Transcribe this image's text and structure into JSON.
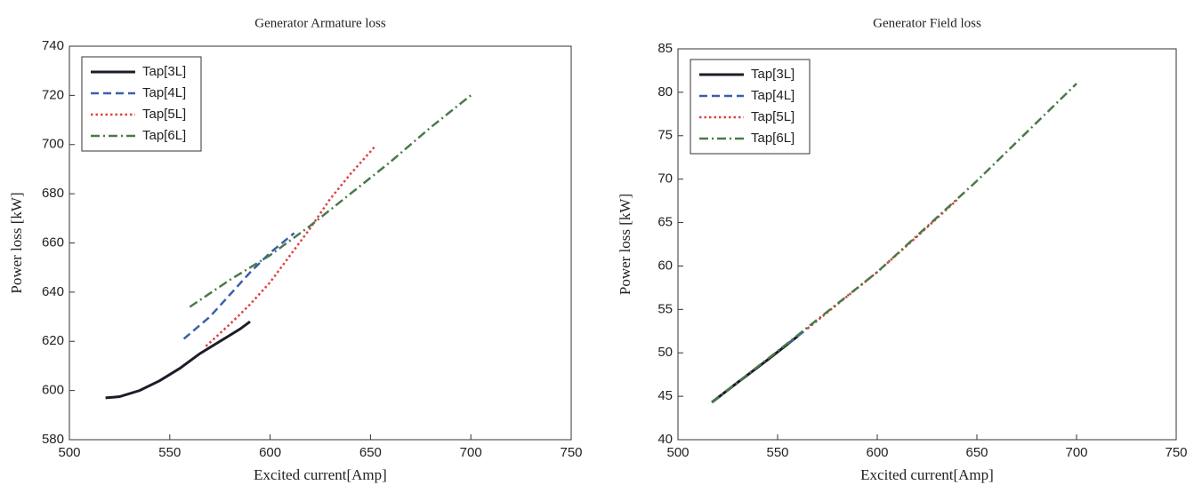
{
  "chart_data": [
    {
      "type": "line",
      "title": "Generator Armature loss",
      "x_label": "Excited current[Amp]",
      "y_label": "Power loss [kW]",
      "xlim": [
        500,
        750
      ],
      "xticks": [
        500,
        550,
        600,
        650,
        700,
        750
      ],
      "ylim": [
        580,
        740
      ],
      "yticks": [
        580,
        600,
        620,
        640,
        660,
        680,
        700,
        720,
        740
      ],
      "legend": "upper left",
      "series": [
        {
          "name": "Tap[3L]",
          "color": "#1c1c2a",
          "x": [
            518,
            525,
            535,
            545,
            555,
            565,
            575,
            585,
            590
          ],
          "values": [
            597,
            597.5,
            600,
            604,
            609,
            615,
            620,
            625,
            628
          ]
        },
        {
          "name": "Tap[4L]",
          "color": "#3a5fad",
          "x": [
            557,
            570,
            580,
            590,
            600,
            612
          ],
          "values": [
            621,
            630,
            639,
            648,
            656,
            664
          ]
        },
        {
          "name": "Tap[5L]",
          "color": "#e04040",
          "x": [
            568,
            580,
            590,
            600,
            610,
            620,
            630,
            640,
            652
          ],
          "values": [
            618,
            627,
            635,
            644,
            655,
            666,
            678,
            688,
            699
          ]
        },
        {
          "name": "Tap[6L]",
          "color": "#4a7a4a",
          "x": [
            560,
            580,
            600,
            620,
            640,
            660,
            680,
            700
          ],
          "values": [
            634,
            645,
            655,
            667,
            680,
            693,
            707,
            720
          ]
        }
      ]
    },
    {
      "type": "line",
      "title": "Generator Field loss",
      "x_label": "Excited current[Amp]",
      "y_label": "Power loss [kW]",
      "xlim": [
        500,
        750
      ],
      "xticks": [
        500,
        550,
        600,
        650,
        700,
        750
      ],
      "ylim": [
        40,
        85
      ],
      "yticks": [
        40,
        45,
        50,
        55,
        60,
        65,
        70,
        75,
        80,
        85
      ],
      "legend": "upper left",
      "series": [
        {
          "name": "Tap[3L]",
          "color": "#1c1c2a",
          "x": [
            517,
            530,
            545,
            560
          ],
          "values": [
            44.3,
            46.6,
            49.2,
            51.9
          ]
        },
        {
          "name": "Tap[4L]",
          "color": "#3a5fad",
          "x": [
            555,
            560,
            565
          ],
          "values": [
            51,
            51.9,
            52.8
          ]
        },
        {
          "name": "Tap[5L]",
          "color": "#e04040",
          "x": [
            565,
            580,
            600,
            620,
            640
          ],
          "values": [
            52.8,
            55.6,
            59.3,
            63.4,
            67.6
          ]
        },
        {
          "name": "Tap[6L]",
          "color": "#4a7a4a",
          "x": [
            517,
            550,
            600,
            650,
            700
          ],
          "values": [
            44.3,
            50.2,
            59.3,
            69.8,
            81
          ]
        }
      ]
    }
  ]
}
